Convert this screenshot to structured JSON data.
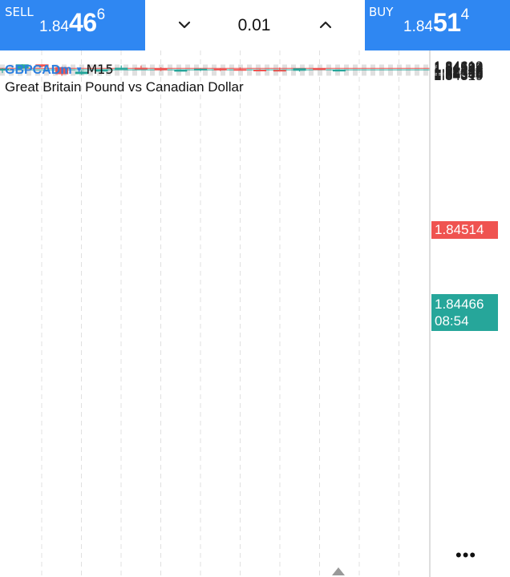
{
  "trade_bar": {
    "sell": {
      "label": "SELL",
      "price_small": "1.84",
      "price_big": "46",
      "price_sup": "6"
    },
    "buy": {
      "label": "BUY",
      "price_small": "1.84",
      "price_big": "51",
      "price_sup": "4"
    },
    "lot": {
      "value": "0.01",
      "decrease_icon": "chevron-down-icon",
      "increase_icon": "chevron-up-icon"
    }
  },
  "header": {
    "symbol": "GBPCADm",
    "timeframe": "M15",
    "description": "Great Britain Pound vs Canadian Dollar"
  },
  "price_tags": {
    "ask": "1.84514",
    "bid": "1.84466",
    "countdown": "08:54"
  },
  "menu": {
    "more_label": "•••"
  },
  "colors": {
    "accent": "#2f87f2",
    "bull": "#26a69a",
    "bear": "#ef5350",
    "grid": "#e0e0e0"
  },
  "chart_data": {
    "type": "candlestick",
    "timeframe": "M15",
    "ylim": [
      1.843,
      1.84632
    ],
    "ytick_labels": [
      "1.84619",
      "1.84594",
      "1.84569",
      "1.84544",
      "1.84494",
      "1.84444",
      "1.84419",
      "1.84394",
      "1.84369",
      "1.84344",
      "1.84319"
    ],
    "ask_line": 1.84514,
    "bid_line": 1.84466,
    "candles": [
      {
        "open": 1.84444,
        "high": 1.84514,
        "low": 1.84366,
        "close": 1.84499
      },
      {
        "open": 1.84506,
        "high": 1.8464,
        "low": 1.845,
        "close": 1.84636
      },
      {
        "open": 1.84636,
        "high": 1.84636,
        "low": 1.84542,
        "close": 1.84567
      },
      {
        "open": 1.8455,
        "high": 1.84558,
        "low": 1.8428,
        "close": 1.8433
      },
      {
        "open": 1.84333,
        "high": 1.84437,
        "low": 1.8431,
        "close": 1.84412
      },
      {
        "open": 1.84412,
        "high": 1.84497,
        "low": 1.84408,
        "close": 1.84483
      },
      {
        "open": 1.84483,
        "high": 1.84601,
        "low": 1.8448,
        "close": 1.8453
      },
      {
        "open": 1.8453,
        "high": 1.84599,
        "low": 1.84496,
        "close": 1.84522
      },
      {
        "open": 1.84518,
        "high": 1.84545,
        "low": 1.84426,
        "close": 1.84451
      },
      {
        "open": 1.84451,
        "high": 1.84478,
        "low": 1.84427,
        "close": 1.8446
      },
      {
        "open": 1.8446,
        "high": 1.84503,
        "low": 1.84427,
        "close": 1.84499
      },
      {
        "open": 1.84499,
        "high": 1.84519,
        "low": 1.84427,
        "close": 1.8449
      },
      {
        "open": 1.84488,
        "high": 1.8454,
        "low": 1.84454,
        "close": 1.84478
      },
      {
        "open": 1.84469,
        "high": 1.84487,
        "low": 1.84431,
        "close": 1.84466
      },
      {
        "open": 1.84464,
        "high": 1.84538,
        "low": 1.84434,
        "close": 1.8444
      },
      {
        "open": 1.84437,
        "high": 1.84511,
        "low": 1.84412,
        "close": 1.84512
      },
      {
        "open": 1.8451,
        "high": 1.8451,
        "low": 1.84459,
        "close": 1.84464
      },
      {
        "open": 1.84464,
        "high": 1.84478,
        "low": 1.84451,
        "close": 1.84466
      }
    ]
  }
}
